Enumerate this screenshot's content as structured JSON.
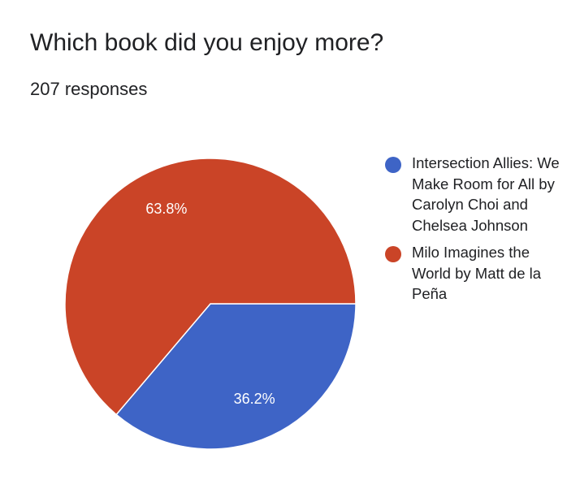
{
  "question": "Which book did you enjoy more?",
  "responses_text": "207 responses",
  "chart_data": {
    "type": "pie",
    "slices": [
      {
        "name": "Intersection Allies: We Make Room for All by Carolyn Choi and Chelsea Johnson",
        "value": 36.2,
        "label": "36.2%",
        "color": "#3e64c6"
      },
      {
        "name": "Milo Imagines the World by Matt de la Peña",
        "value": 63.8,
        "label": "63.8%",
        "color": "#ca4427"
      }
    ],
    "legend_position": "right",
    "start": "3 o'clock",
    "direction": "clockwise"
  }
}
